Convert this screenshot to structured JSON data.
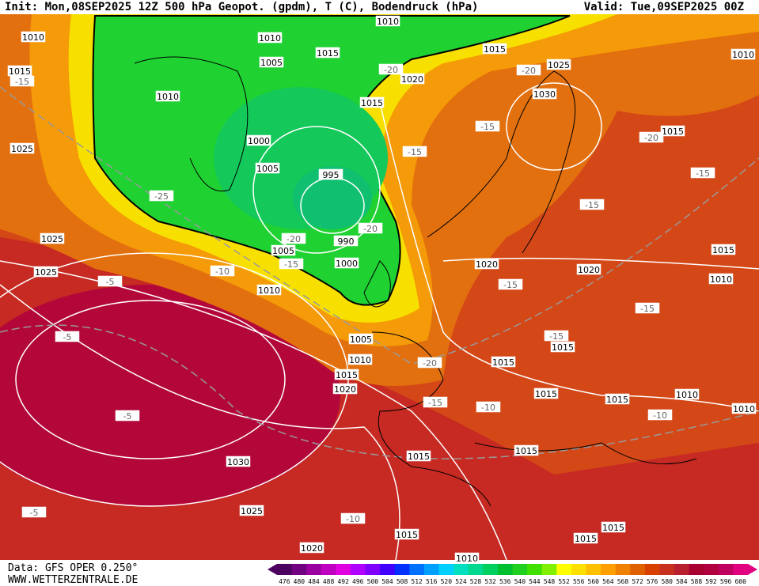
{
  "header": {
    "title": "Init: Mon,08SEP2025 12Z  500 hPa Geopot. (gpdm), T (C), Bodendruck (hPa)",
    "valid": "Valid: Tue,09SEP2025 00Z"
  },
  "footer": {
    "source": "Data: GFS OPER 0.250°",
    "website": "WWW.WETTERZENTRALE.DE"
  },
  "colorbar": {
    "ticks": [
      476,
      480,
      484,
      488,
      492,
      496,
      500,
      504,
      508,
      512,
      516,
      520,
      524,
      528,
      532,
      536,
      540,
      544,
      548,
      552,
      556,
      560,
      564,
      568,
      572,
      576,
      580,
      584,
      588,
      592,
      596,
      600
    ],
    "colors": [
      "#4b0060",
      "#700080",
      "#9a00a0",
      "#c000c0",
      "#e000e0",
      "#b000ff",
      "#8000ff",
      "#4000ff",
      "#0030ff",
      "#0070ff",
      "#00a0ff",
      "#00d0ff",
      "#00e0c0",
      "#00d890",
      "#00d060",
      "#00c030",
      "#20d020",
      "#40e000",
      "#80f000",
      "#ffff00",
      "#ffe000",
      "#ffc000",
      "#ffa000",
      "#f08000",
      "#e06000",
      "#d84000",
      "#c83020",
      "#b82030",
      "#a80030",
      "#b00040",
      "#c00060",
      "#e00080"
    ]
  },
  "map": {
    "pressure_labels": [
      1010,
      1015,
      1025,
      1025,
      1025,
      1010,
      1005,
      1010,
      1015,
      1010,
      1015,
      1025,
      1030,
      1020,
      1015,
      1000,
      1005,
      995,
      990,
      1000,
      1005,
      1010,
      1005,
      1010,
      1015,
      1020,
      1030,
      1025,
      1020,
      1015,
      1015,
      1015,
      1015,
      1015,
      1015,
      1020,
      1020,
      1015,
      1010,
      1015,
      1010,
      1010,
      1015,
      1010,
      1015,
      1015,
      1010
    ],
    "temperature_labels": [
      -15,
      -25,
      -20,
      -15,
      -10,
      -5,
      -5,
      -5,
      -5,
      -20,
      -20,
      -15,
      -15,
      -20,
      -15,
      -20,
      -15,
      -15,
      -15,
      -15,
      -20,
      -15,
      -10,
      -10,
      -10
    ]
  }
}
